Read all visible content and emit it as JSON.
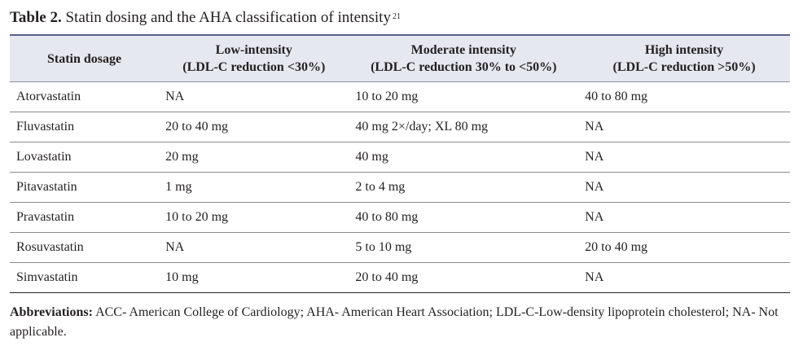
{
  "caption": {
    "label": "Table 2.",
    "text": "Statin dosing and the AHA classification of intensity",
    "ref": "21"
  },
  "table": {
    "headers": [
      {
        "title": "Statin dosage",
        "sub": ""
      },
      {
        "title": "Low-intensity",
        "sub": "(LDL-C reduction <30%)"
      },
      {
        "title": "Moderate intensity",
        "sub": "(LDL-C reduction 30% to <50%)"
      },
      {
        "title": "High intensity",
        "sub": "(LDL-C reduction >50%)"
      }
    ],
    "rows": [
      [
        "Atorvastatin",
        "NA",
        "10 to 20 mg",
        "40 to 80 mg"
      ],
      [
        "Fluvastatin",
        "20 to 40 mg",
        "40 mg 2×/day; XL 80 mg",
        "NA"
      ],
      [
        "Lovastatin",
        "20 mg",
        "40 mg",
        "NA"
      ],
      [
        "Pitavastatin",
        "1 mg",
        "2 to 4 mg",
        "NA"
      ],
      [
        "Pravastatin",
        "10 to 20 mg",
        "40 to 80 mg",
        "NA"
      ],
      [
        "Rosuvastatin",
        "NA",
        "5 to 10 mg",
        "20 to 40 mg"
      ],
      [
        "Simvastatin",
        "10 mg",
        "20 to 40 mg",
        "NA"
      ]
    ]
  },
  "footnote": {
    "label": "Abbreviations:",
    "text": "ACC- American College of Cardiology; AHA- American Heart Association; LDL-C-Low-density lipoprotein cholesterol; NA- Not applicable."
  },
  "colors": {
    "header_bg": "#e6e8f0",
    "header_rule": "#5a5f8c",
    "text": "#231f20"
  }
}
